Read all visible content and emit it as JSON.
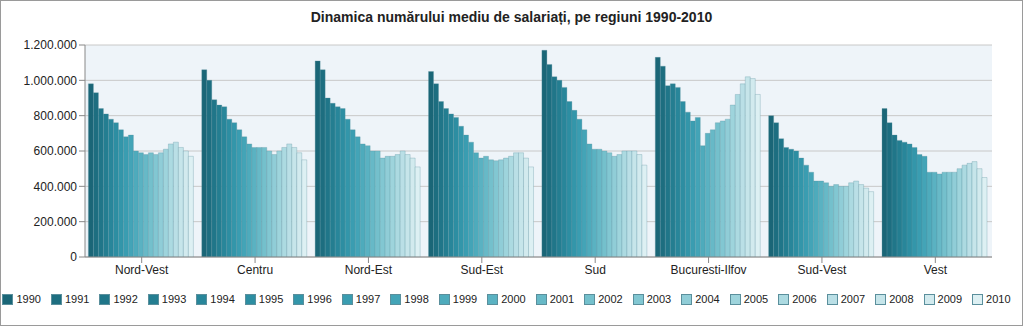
{
  "chart_data": {
    "type": "bar",
    "title": "Dinamica numărului mediu de salariați, pe regiuni 1990-2010",
    "categories": [
      "Nord-Vest",
      "Centru",
      "Nord-Est",
      "Sud-Est",
      "Sud",
      "Bucuresti-Ilfov",
      "Sud-Vest",
      "Vest"
    ],
    "ylim": [
      0,
      1200000
    ],
    "yticks": [
      0,
      {
        "value": 200000,
        "label": "200.000"
      },
      {
        "value": 400000,
        "label": "400.000"
      },
      {
        "value": 600000,
        "label": "600.000"
      },
      {
        "value": 800000,
        "label": "800.000"
      },
      {
        "value": 1000000,
        "label": "1.000.000"
      },
      {
        "value": 1200000,
        "label": "1.200.000"
      }
    ],
    "grid": true,
    "legend": "bottom",
    "series": [
      {
        "name": "1990",
        "color": "#1a6677",
        "values": [
          980000,
          1060000,
          1110000,
          1050000,
          1170000,
          1130000,
          800000,
          840000
        ]
      },
      {
        "name": "1991",
        "color": "#1d6e80",
        "values": [
          930000,
          1000000,
          1060000,
          980000,
          1090000,
          1080000,
          760000,
          760000
        ]
      },
      {
        "name": "1992",
        "color": "#207689",
        "values": [
          840000,
          890000,
          900000,
          880000,
          1020000,
          970000,
          670000,
          690000
        ]
      },
      {
        "name": "1993",
        "color": "#247e91",
        "values": [
          810000,
          860000,
          870000,
          840000,
          1000000,
          980000,
          620000,
          660000
        ]
      },
      {
        "name": "1994",
        "color": "#28869a",
        "values": [
          780000,
          850000,
          850000,
          810000,
          960000,
          960000,
          610000,
          650000
        ]
      },
      {
        "name": "1995",
        "color": "#2d8ea2",
        "values": [
          760000,
          780000,
          840000,
          790000,
          880000,
          880000,
          600000,
          640000
        ]
      },
      {
        "name": "1996",
        "color": "#3396aa",
        "values": [
          720000,
          760000,
          780000,
          740000,
          830000,
          820000,
          560000,
          620000
        ]
      },
      {
        "name": "1997",
        "color": "#3a9db1",
        "values": [
          680000,
          720000,
          720000,
          690000,
          780000,
          770000,
          520000,
          580000
        ]
      },
      {
        "name": "1998",
        "color": "#43a4b7",
        "values": [
          690000,
          680000,
          680000,
          650000,
          720000,
          790000,
          480000,
          570000
        ]
      },
      {
        "name": "1999",
        "color": "#4eabbc",
        "values": [
          600000,
          640000,
          640000,
          590000,
          640000,
          630000,
          430000,
          480000
        ]
      },
      {
        "name": "2000",
        "color": "#5ab2c2",
        "values": [
          590000,
          620000,
          630000,
          560000,
          610000,
          700000,
          430000,
          480000
        ]
      },
      {
        "name": "2001",
        "color": "#67b9c7",
        "values": [
          580000,
          620000,
          600000,
          570000,
          610000,
          720000,
          420000,
          470000
        ]
      },
      {
        "name": "2002",
        "color": "#74c0cc",
        "values": [
          590000,
          620000,
          600000,
          550000,
          600000,
          760000,
          400000,
          480000
        ]
      },
      {
        "name": "2003",
        "color": "#82c7d2",
        "values": [
          580000,
          600000,
          560000,
          545000,
          590000,
          770000,
          410000,
          480000
        ]
      },
      {
        "name": "2004",
        "color": "#90cdd7",
        "values": [
          590000,
          580000,
          570000,
          550000,
          570000,
          780000,
          400000,
          480000
        ]
      },
      {
        "name": "2005",
        "color": "#9ed4dc",
        "values": [
          610000,
          600000,
          570000,
          560000,
          580000,
          860000,
          400000,
          500000
        ]
      },
      {
        "name": "2006",
        "color": "#acdae1",
        "values": [
          640000,
          620000,
          580000,
          570000,
          600000,
          920000,
          420000,
          520000
        ]
      },
      {
        "name": "2007",
        "color": "#badfe6",
        "values": [
          650000,
          640000,
          600000,
          590000,
          600000,
          980000,
          430000,
          530000
        ]
      },
      {
        "name": "2008",
        "color": "#c6e5ea",
        "values": [
          620000,
          620000,
          580000,
          590000,
          600000,
          1020000,
          410000,
          540000
        ]
      },
      {
        "name": "2009",
        "color": "#d2eaee",
        "values": [
          600000,
          590000,
          560000,
          560000,
          580000,
          1010000,
          390000,
          500000
        ]
      },
      {
        "name": "2010",
        "color": "#ddf0f3",
        "values": [
          570000,
          550000,
          510000,
          510000,
          520000,
          920000,
          370000,
          450000
        ]
      }
    ]
  }
}
